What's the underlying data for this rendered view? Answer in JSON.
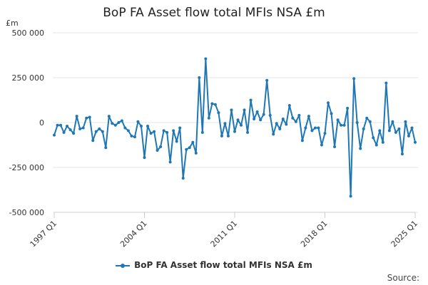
{
  "chart_data": {
    "type": "line",
    "title": "BoP FA Asset flow total MFIs NSA £m",
    "ylabel": "£m",
    "xlabel": "",
    "ylim": [
      -500000,
      500000
    ],
    "yticks": [
      500000,
      250000,
      0,
      -250000,
      -500000
    ],
    "ytick_labels": [
      "500 000",
      "250 000",
      "0",
      "-250 000",
      "-500 000"
    ],
    "xticks": [
      0,
      28,
      56,
      84,
      112
    ],
    "xtick_labels": [
      "1997 Q1",
      "2004 Q1",
      "2011 Q1",
      "2018 Q1",
      "2025 Q1"
    ],
    "series": [
      {
        "name": "BoP FA Asset flow total MFIs NSA £m",
        "color": "#1f77b4",
        "start_quarter": "1997 Q1",
        "values": [
          -70000,
          -15000,
          -15000,
          -55000,
          -20000,
          -40000,
          -60000,
          35000,
          -35000,
          -30000,
          25000,
          30000,
          -100000,
          -50000,
          -35000,
          -50000,
          -140000,
          35000,
          -5000,
          -15000,
          0,
          10000,
          -30000,
          -45000,
          -75000,
          -80000,
          5000,
          -20000,
          -195000,
          -20000,
          -60000,
          -50000,
          -155000,
          -135000,
          -45000,
          -55000,
          -220000,
          -45000,
          -105000,
          -30000,
          -310000,
          -150000,
          -140000,
          -110000,
          -170000,
          250000,
          -55000,
          355000,
          25000,
          105000,
          100000,
          55000,
          -75000,
          -5000,
          -75000,
          70000,
          -50000,
          15000,
          -15000,
          70000,
          -55000,
          125000,
          20000,
          60000,
          15000,
          45000,
          235000,
          40000,
          -65000,
          -5000,
          -35000,
          20000,
          -10000,
          95000,
          25000,
          5000,
          40000,
          -100000,
          -30000,
          35000,
          -45000,
          -30000,
          -30000,
          -125000,
          -60000,
          110000,
          50000,
          -135000,
          15000,
          -15000,
          -15000,
          80000,
          -410000,
          245000,
          0,
          -145000,
          -35000,
          25000,
          5000,
          -85000,
          -125000,
          -45000,
          -110000,
          220000,
          -45000,
          5000,
          -55000,
          -35000,
          -175000,
          5000,
          -75000,
          -30000,
          -110000
        ]
      }
    ]
  },
  "legend": {
    "label": "BoP FA Asset flow total MFIs NSA £m"
  },
  "source_label": "Source:"
}
